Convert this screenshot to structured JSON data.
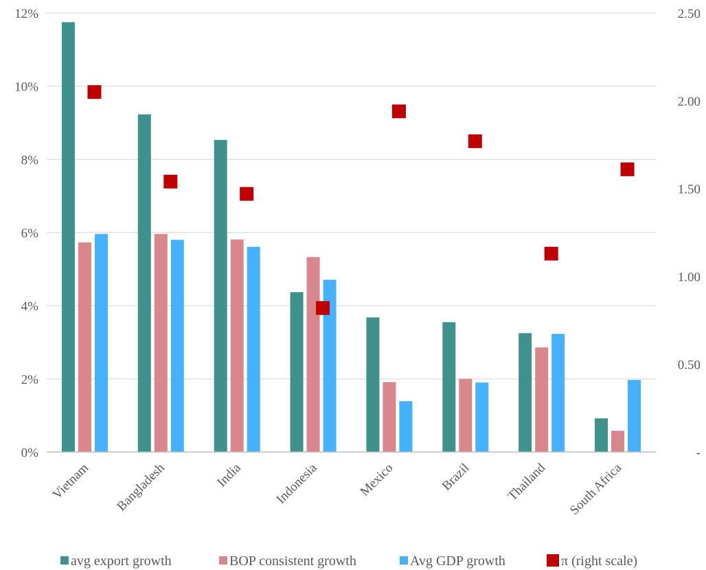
{
  "chart_data": {
    "type": "bar",
    "categories": [
      "Vietnam",
      "Bangladesh",
      "India",
      "Indonesia",
      "Mexico",
      "Brazil",
      "Thailand",
      "South Africa"
    ],
    "series": [
      {
        "name": "avg export growth",
        "type": "bar",
        "axis": "left",
        "color": "#3f918b",
        "values": [
          11.75,
          9.23,
          8.53,
          4.37,
          3.68,
          3.55,
          3.25,
          0.92
        ]
      },
      {
        "name": "BOP consistent growth",
        "type": "bar",
        "axis": "left",
        "color": "#d9868c",
        "values": [
          5.73,
          5.96,
          5.81,
          5.33,
          1.91,
          2.0,
          2.86,
          0.58
        ]
      },
      {
        "name": "Avg GDP growth",
        "type": "bar",
        "axis": "left",
        "color": "#45b1ff",
        "values": [
          5.96,
          5.8,
          5.61,
          4.71,
          1.39,
          1.9,
          3.23,
          1.97
        ]
      },
      {
        "name": "π (right scale)",
        "type": "scatter",
        "axis": "right",
        "color": "#c00000",
        "values": [
          2.05,
          1.54,
          1.47,
          0.82,
          1.94,
          1.77,
          1.13,
          1.61
        ]
      }
    ],
    "y_left": {
      "min": 0,
      "max": 12,
      "ticks": [
        0,
        2,
        4,
        6,
        8,
        10,
        12
      ],
      "tick_labels": [
        "0%",
        "2%",
        "4%",
        "6%",
        "8%",
        "10%",
        "12%"
      ]
    },
    "y_right": {
      "min": 0,
      "max": 2.5,
      "ticks": [
        0,
        0.5,
        1,
        1.5,
        2,
        2.5
      ],
      "tick_labels": [
        "-",
        "0.50",
        "1.00",
        "1.50",
        "2.00",
        "2.50"
      ]
    },
    "grid": true,
    "legend_position": "bottom",
    "title": "",
    "xlabel": "",
    "ylabel": ""
  }
}
